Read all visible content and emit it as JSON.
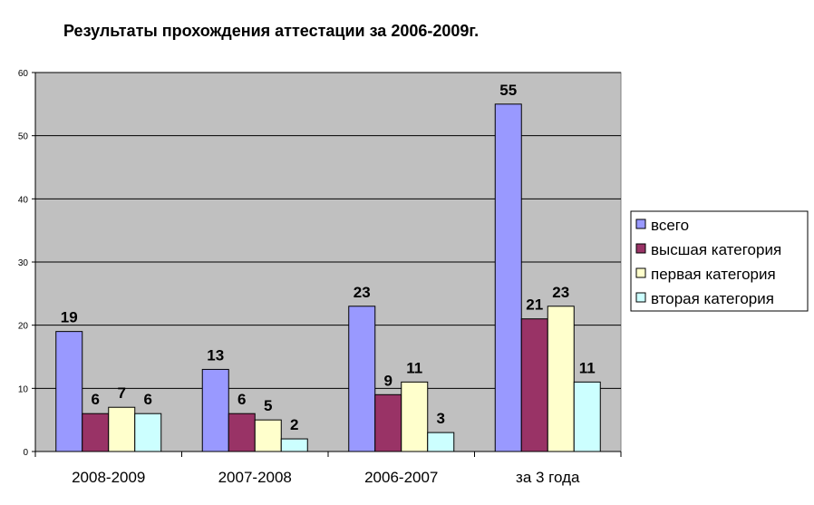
{
  "chart_data": {
    "type": "bar",
    "title": "Результаты прохождения аттестации за 2006-2009г.",
    "xlabel": "",
    "ylabel": "",
    "ylim": [
      0,
      60
    ],
    "yticks": [
      0,
      10,
      20,
      30,
      40,
      50,
      60
    ],
    "grid": true,
    "legend_position": "right",
    "categories": [
      "2008-2009",
      "2007-2008",
      "2006-2007",
      "за 3 года"
    ],
    "series": [
      {
        "name": "всего",
        "color": "#9999ff",
        "values": [
          19,
          13,
          23,
          55
        ]
      },
      {
        "name": "высшая категория",
        "color": "#993366",
        "values": [
          6,
          6,
          9,
          21
        ]
      },
      {
        "name": "первая категория",
        "color": "#ffffcc",
        "values": [
          7,
          5,
          11,
          23
        ]
      },
      {
        "name": "вторая категория",
        "color": "#ccffff",
        "values": [
          6,
          2,
          3,
          11
        ]
      }
    ],
    "plot_background": "#c0c0c0"
  }
}
